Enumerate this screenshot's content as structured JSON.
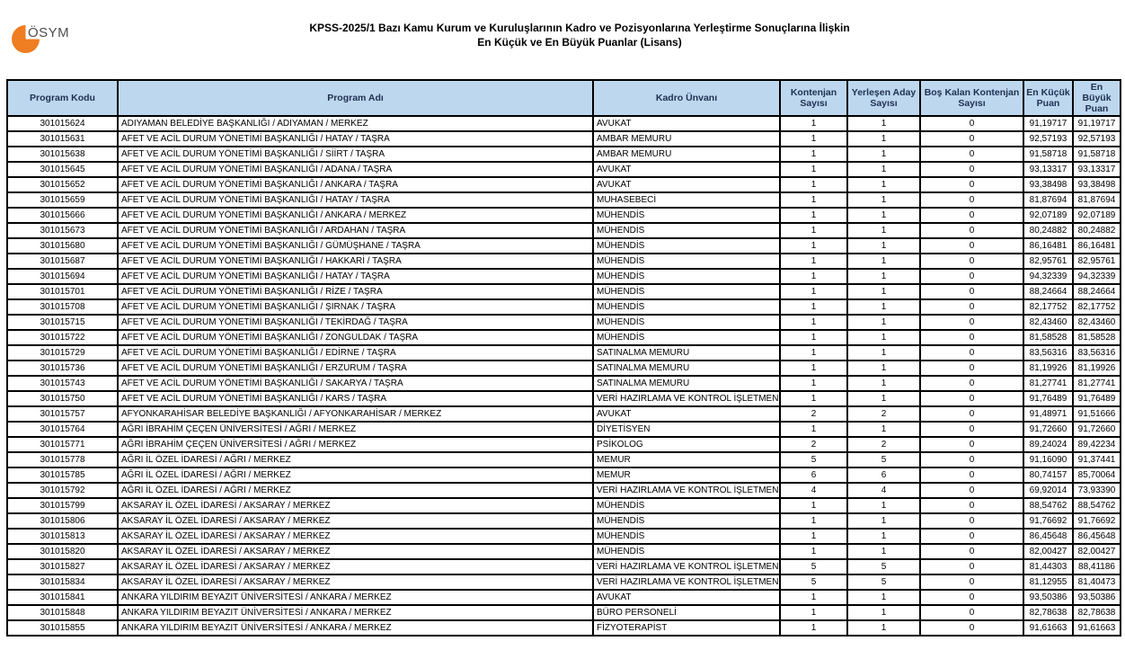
{
  "page": {
    "logo_text": "ÖSYM",
    "title_line1": "KPSS-2025/1 Bazı Kamu Kurum ve Kuruluşlarının Kadro ve Pozisyonlarına Yerleştirme Sonuçlarına İlişkin",
    "title_line2": "En Küçük ve En Büyük Puanlar (Lisans)"
  },
  "colors": {
    "header_bg": "#BDD7EE",
    "logo_orange": "#EF7D22",
    "border": "#000000"
  },
  "table": {
    "columns": [
      "Program Kodu",
      "Program Adı",
      "Kadro Ünvanı",
      "Kontenjan Sayısı",
      "Yerleşen Aday Sayısı",
      "Boş Kalan Kontenjan Sayısı",
      "En Küçük Puan",
      "En Büyük Puan"
    ],
    "column_keys": [
      "program-kodu",
      "program-adi",
      "kadro-unvani",
      "kontenjan-sayisi",
      "yerlesen-aday-sayisi",
      "bos-kalan-kontenjan-sayisi",
      "en-kucuk-puan",
      "en-buyuk-puan"
    ],
    "rows": [
      [
        "301015624",
        "ADIYAMAN BELEDİYE BAŞKANLIĞI / ADIYAMAN / MERKEZ",
        "AVUKAT",
        "1",
        "1",
        "0",
        "91,19717",
        "91,19717"
      ],
      [
        "301015631",
        "AFET VE ACİL DURUM YÖNETİMİ BAŞKANLIĞI / HATAY / TAŞRA",
        "AMBAR MEMURU",
        "1",
        "1",
        "0",
        "92,57193",
        "92,57193"
      ],
      [
        "301015638",
        "AFET VE ACİL DURUM YÖNETİMİ BAŞKANLIĞI / SİİRT / TAŞRA",
        "AMBAR MEMURU",
        "1",
        "1",
        "0",
        "91,58718",
        "91,58718"
      ],
      [
        "301015645",
        "AFET VE ACİL DURUM YÖNETİMİ BAŞKANLIĞI / ADANA / TAŞRA",
        "AVUKAT",
        "1",
        "1",
        "0",
        "93,13317",
        "93,13317"
      ],
      [
        "301015652",
        "AFET VE ACİL DURUM YÖNETİMİ BAŞKANLIĞI / ANKARA / TAŞRA",
        "AVUKAT",
        "1",
        "1",
        "0",
        "93,38498",
        "93,38498"
      ],
      [
        "301015659",
        "AFET VE ACİL DURUM YÖNETİMİ BAŞKANLIĞI / HATAY / TAŞRA",
        "MUHASEBECİ",
        "1",
        "1",
        "0",
        "81,87694",
        "81,87694"
      ],
      [
        "301015666",
        "AFET VE ACİL DURUM YÖNETİMİ BAŞKANLIĞI / ANKARA / MERKEZ",
        "MÜHENDİS",
        "1",
        "1",
        "0",
        "92,07189",
        "92,07189"
      ],
      [
        "301015673",
        "AFET VE ACİL DURUM YÖNETİMİ BAŞKANLIĞI / ARDAHAN / TAŞRA",
        "MÜHENDİS",
        "1",
        "1",
        "0",
        "80,24882",
        "80,24882"
      ],
      [
        "301015680",
        "AFET VE ACİL DURUM YÖNETİMİ BAŞKANLIĞI / GÜMÜŞHANE / TAŞRA",
        "MÜHENDİS",
        "1",
        "1",
        "0",
        "86,16481",
        "86,16481"
      ],
      [
        "301015687",
        "AFET VE ACİL DURUM YÖNETİMİ BAŞKANLIĞI / HAKKARİ / TAŞRA",
        "MÜHENDİS",
        "1",
        "1",
        "0",
        "82,95761",
        "82,95761"
      ],
      [
        "301015694",
        "AFET VE ACİL DURUM YÖNETİMİ BAŞKANLIĞI / HATAY / TAŞRA",
        "MÜHENDİS",
        "1",
        "1",
        "0",
        "94,32339",
        "94,32339"
      ],
      [
        "301015701",
        "AFET VE ACİL DURUM YÖNETİMİ BAŞKANLIĞI / RİZE / TAŞRA",
        "MÜHENDİS",
        "1",
        "1",
        "0",
        "88,24664",
        "88,24664"
      ],
      [
        "301015708",
        "AFET VE ACİL DURUM YÖNETİMİ BAŞKANLIĞI / ŞIRNAK / TAŞRA",
        "MÜHENDİS",
        "1",
        "1",
        "0",
        "82,17752",
        "82,17752"
      ],
      [
        "301015715",
        "AFET VE ACİL DURUM YÖNETİMİ BAŞKANLIĞI / TEKİRDAĞ / TAŞRA",
        "MÜHENDİS",
        "1",
        "1",
        "0",
        "82,43460",
        "82,43460"
      ],
      [
        "301015722",
        "AFET VE ACİL DURUM YÖNETİMİ BAŞKANLIĞI / ZONGULDAK / TAŞRA",
        "MÜHENDİS",
        "1",
        "1",
        "0",
        "81,58528",
        "81,58528"
      ],
      [
        "301015729",
        "AFET VE ACİL DURUM YÖNETİMİ BAŞKANLIĞI / EDİRNE / TAŞRA",
        "SATINALMA MEMURU",
        "1",
        "1",
        "0",
        "83,56316",
        "83,56316"
      ],
      [
        "301015736",
        "AFET VE ACİL DURUM YÖNETİMİ BAŞKANLIĞI / ERZURUM / TAŞRA",
        "SATINALMA MEMURU",
        "1",
        "1",
        "0",
        "81,19926",
        "81,19926"
      ],
      [
        "301015743",
        "AFET VE ACİL DURUM YÖNETİMİ BAŞKANLIĞI / SAKARYA / TAŞRA",
        "SATINALMA MEMURU",
        "1",
        "1",
        "0",
        "81,27741",
        "81,27741"
      ],
      [
        "301015750",
        "AFET VE ACİL DURUM YÖNETİMİ BAŞKANLIĞI / KARS / TAŞRA",
        "VERİ HAZIRLAMA VE KONTROL İŞLETMENİ",
        "1",
        "1",
        "0",
        "91,76489",
        "91,76489"
      ],
      [
        "301015757",
        "AFYONKARAHİSAR BELEDİYE BAŞKANLIĞI / AFYONKARAHİSAR / MERKEZ",
        "AVUKAT",
        "2",
        "2",
        "0",
        "91,48971",
        "91,51666"
      ],
      [
        "301015764",
        "AĞRI İBRAHİM ÇEÇEN ÜNİVERSİTESİ / AĞRI / MERKEZ",
        "DİYETİSYEN",
        "1",
        "1",
        "0",
        "91,72660",
        "91,72660"
      ],
      [
        "301015771",
        "AĞRI İBRAHİM ÇEÇEN ÜNİVERSİTESİ / AĞRI / MERKEZ",
        "PSİKOLOG",
        "2",
        "2",
        "0",
        "89,24024",
        "89,42234"
      ],
      [
        "301015778",
        "AĞRI İL ÖZEL İDARESİ / AĞRI / MERKEZ",
        "MEMUR",
        "5",
        "5",
        "0",
        "91,16090",
        "91,37441"
      ],
      [
        "301015785",
        "AĞRI İL ÖZEL İDARESİ / AĞRI / MERKEZ",
        "MEMUR",
        "6",
        "6",
        "0",
        "80,74157",
        "85,70064"
      ],
      [
        "301015792",
        "AĞRI İL ÖZEL İDARESİ / AĞRI / MERKEZ",
        "VERİ HAZIRLAMA VE KONTROL İŞLETMENİ",
        "4",
        "4",
        "0",
        "69,92014",
        "73,93390"
      ],
      [
        "301015799",
        "AKSARAY İL ÖZEL İDARESİ / AKSARAY / MERKEZ",
        "MÜHENDİS",
        "1",
        "1",
        "0",
        "88,54762",
        "88,54762"
      ],
      [
        "301015806",
        "AKSARAY İL ÖZEL İDARESİ / AKSARAY / MERKEZ",
        "MÜHENDİS",
        "1",
        "1",
        "0",
        "91,76692",
        "91,76692"
      ],
      [
        "301015813",
        "AKSARAY İL ÖZEL İDARESİ / AKSARAY / MERKEZ",
        "MÜHENDİS",
        "1",
        "1",
        "0",
        "86,45648",
        "86,45648"
      ],
      [
        "301015820",
        "AKSARAY İL ÖZEL İDARESİ / AKSARAY / MERKEZ",
        "MÜHENDİS",
        "1",
        "1",
        "0",
        "82,00427",
        "82,00427"
      ],
      [
        "301015827",
        "AKSARAY İL ÖZEL İDARESİ / AKSARAY / MERKEZ",
        "VERİ HAZIRLAMA VE KONTROL İŞLETMENİ",
        "5",
        "5",
        "0",
        "81,44303",
        "88,41186"
      ],
      [
        "301015834",
        "AKSARAY İL ÖZEL İDARESİ / AKSARAY / MERKEZ",
        "VERİ HAZIRLAMA VE KONTROL İŞLETMENİ",
        "5",
        "5",
        "0",
        "81,12955",
        "81,40473"
      ],
      [
        "301015841",
        "ANKARA YILDIRIM BEYAZIT ÜNİVERSİTESİ / ANKARA / MERKEZ",
        "AVUKAT",
        "1",
        "1",
        "0",
        "93,50386",
        "93,50386"
      ],
      [
        "301015848",
        "ANKARA YILDIRIM BEYAZIT ÜNİVERSİTESİ / ANKARA / MERKEZ",
        "BÜRO PERSONELİ",
        "1",
        "1",
        "0",
        "82,78638",
        "82,78638"
      ],
      [
        "301015855",
        "ANKARA YILDIRIM BEYAZIT ÜNİVERSİTESİ / ANKARA / MERKEZ",
        "FİZYOTERAPİST",
        "1",
        "1",
        "0",
        "91,61663",
        "91,61663"
      ]
    ]
  }
}
